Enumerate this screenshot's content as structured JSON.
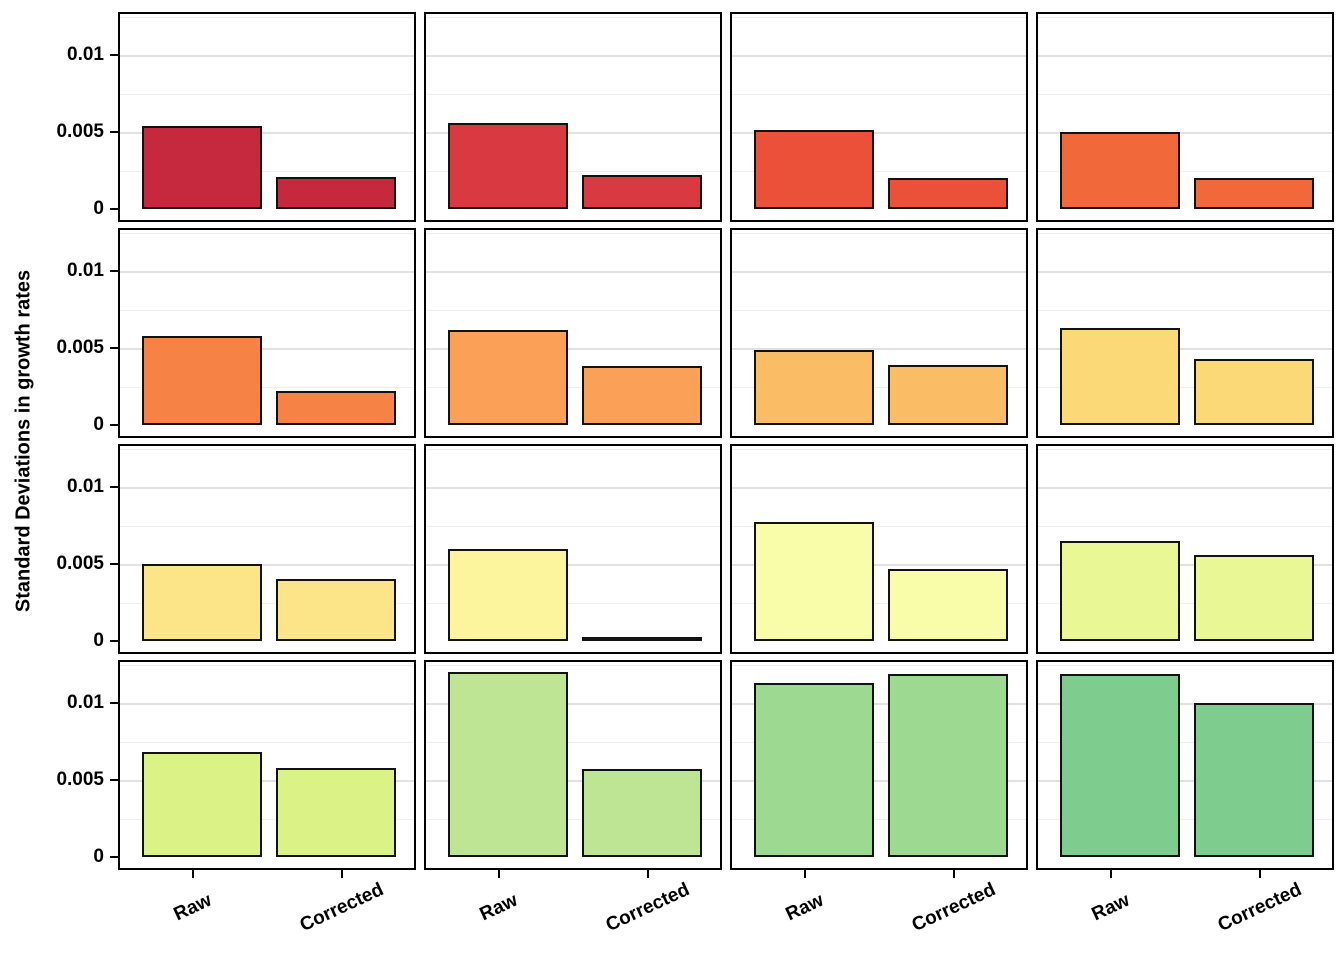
{
  "figure": {
    "ylabel": "Standard Deviations in growth rates",
    "ytick_labels": [
      "0",
      "0.005",
      "0.01"
    ],
    "xtick_labels": [
      "Raw",
      "Corrected"
    ]
  },
  "colors": {
    "panel_border": "#000000",
    "bar_border": "#121212",
    "grid_major": "#e1e1e1",
    "grid_minor": "#efefef",
    "text": "#000000",
    "background": "#ffffff"
  },
  "chart_data": {
    "type": "bar",
    "layout": "facet-grid-4x4",
    "title": "",
    "xlabel": "",
    "ylabel": "Standard Deviations in growth rates",
    "categories": [
      "Raw",
      "Corrected"
    ],
    "yticks": [
      0,
      0.005,
      0.01
    ],
    "grid_minor_ticks": [
      0.0025,
      0.0075,
      0.0125
    ],
    "ylim": [
      0,
      0.0128
    ],
    "legend": "none",
    "panels": [
      {
        "row": 1,
        "col": 1,
        "fill": "#C6283D",
        "values": {
          "Raw": 0.0054,
          "Corrected": 0.0021
        }
      },
      {
        "row": 1,
        "col": 2,
        "fill": "#D93940",
        "values": {
          "Raw": 0.0056,
          "Corrected": 0.0022
        }
      },
      {
        "row": 1,
        "col": 3,
        "fill": "#EA5138",
        "values": {
          "Raw": 0.0051,
          "Corrected": 0.002
        }
      },
      {
        "row": 1,
        "col": 4,
        "fill": "#F1683A",
        "values": {
          "Raw": 0.005,
          "Corrected": 0.002
        }
      },
      {
        "row": 2,
        "col": 1,
        "fill": "#F68245",
        "values": {
          "Raw": 0.0058,
          "Corrected": 0.0022
        }
      },
      {
        "row": 2,
        "col": 2,
        "fill": "#FAA157",
        "values": {
          "Raw": 0.0062,
          "Corrected": 0.0038
        }
      },
      {
        "row": 2,
        "col": 3,
        "fill": "#FABD66",
        "values": {
          "Raw": 0.0049,
          "Corrected": 0.0039
        }
      },
      {
        "row": 2,
        "col": 4,
        "fill": "#FAD976",
        "values": {
          "Raw": 0.0063,
          "Corrected": 0.0043
        }
      },
      {
        "row": 3,
        "col": 1,
        "fill": "#FCE489",
        "values": {
          "Raw": 0.005,
          "Corrected": 0.004
        }
      },
      {
        "row": 3,
        "col": 2,
        "fill": "#FDF49E",
        "values": {
          "Raw": 0.006,
          "Corrected": 0.0001
        }
      },
      {
        "row": 3,
        "col": 3,
        "fill": "#F9FCA8",
        "values": {
          "Raw": 0.0077,
          "Corrected": 0.0047
        }
      },
      {
        "row": 3,
        "col": 4,
        "fill": "#EAF795",
        "values": {
          "Raw": 0.0065,
          "Corrected": 0.0056
        }
      },
      {
        "row": 4,
        "col": 1,
        "fill": "#DBF287",
        "values": {
          "Raw": 0.0068,
          "Corrected": 0.0058
        }
      },
      {
        "row": 4,
        "col": 2,
        "fill": "#BEE593",
        "values": {
          "Raw": 0.012,
          "Corrected": 0.0057
        }
      },
      {
        "row": 4,
        "col": 3,
        "fill": "#9ED991",
        "values": {
          "Raw": 0.0113,
          "Corrected": 0.0119
        }
      },
      {
        "row": 4,
        "col": 4,
        "fill": "#7ECC8E",
        "values": {
          "Raw": 0.0119,
          "Corrected": 0.01
        }
      }
    ]
  }
}
